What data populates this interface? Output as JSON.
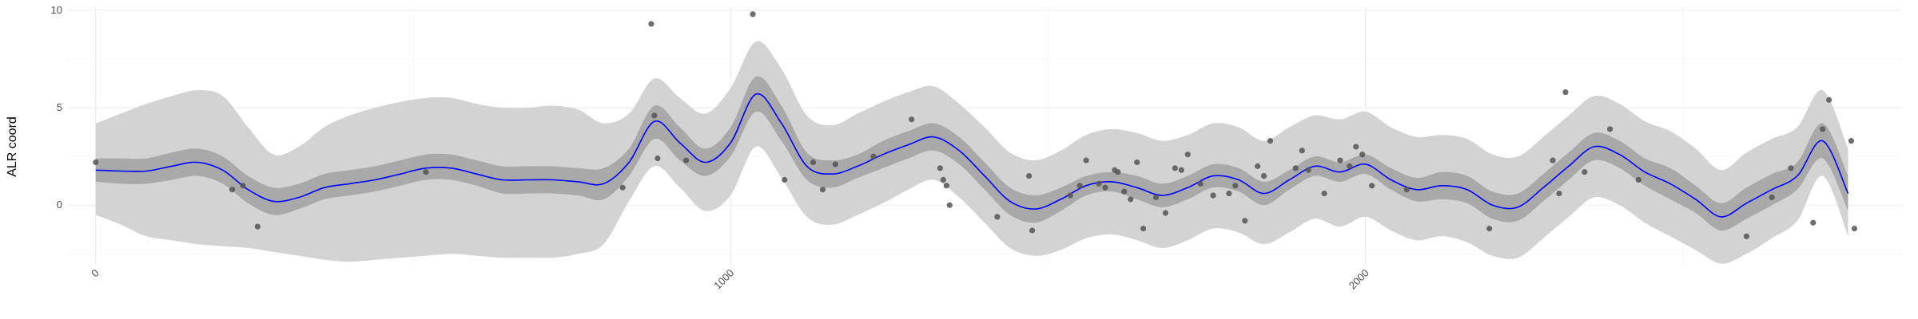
{
  "chart_data": {
    "type": "line",
    "title": "",
    "xlabel": "",
    "ylabel": "ALR coord",
    "xlim": [
      -45,
      2845
    ],
    "ylim": [
      -3.1,
      10.2
    ],
    "x_ticks": [
      0,
      1000,
      2000
    ],
    "x_tick_labels": [
      "0",
      "1000",
      "2000"
    ],
    "y_ticks": [
      0,
      5,
      10
    ],
    "y_tick_labels": [
      "0",
      "5",
      "10"
    ],
    "grid": true,
    "x_tick_label_rotation": "45deg",
    "colors": {
      "mean_line": "#0000ff",
      "inner_band": "#a9a9a9",
      "outer_band": "#d3d3d3",
      "points": "#555555",
      "grid_major": "#ebebeb",
      "grid_minor": "#f4f4f4"
    },
    "series": [
      {
        "role": "posterior-mean",
        "x": [
          0,
          40,
          80,
          120,
          160,
          200,
          240,
          280,
          320,
          360,
          400,
          440,
          480,
          520,
          560,
          600,
          640,
          680,
          720,
          760,
          800,
          840,
          880,
          920,
          960,
          1000,
          1040,
          1080,
          1120,
          1160,
          1200,
          1240,
          1280,
          1320,
          1360,
          1400,
          1440,
          1480,
          1520,
          1560,
          1600,
          1640,
          1680,
          1720,
          1760,
          1800,
          1840,
          1880,
          1920,
          1960,
          2000,
          2040,
          2080,
          2120,
          2160,
          2200,
          2240,
          2280,
          2320,
          2360,
          2400,
          2440,
          2480,
          2520,
          2560,
          2600,
          2640,
          2680,
          2720,
          2760
        ],
        "y": [
          1.8,
          1.75,
          1.75,
          2.0,
          2.2,
          1.8,
          0.8,
          0.2,
          0.4,
          0.9,
          1.1,
          1.3,
          1.6,
          1.9,
          1.9,
          1.6,
          1.3,
          1.3,
          1.3,
          1.2,
          1.1,
          2.2,
          4.3,
          3.2,
          2.2,
          3.2,
          5.7,
          4.2,
          2.0,
          1.6,
          2.0,
          2.6,
          3.1,
          3.5,
          2.8,
          1.5,
          0.2,
          -0.2,
          0.3,
          1.0,
          1.2,
          0.9,
          0.5,
          0.9,
          1.5,
          1.3,
          0.6,
          1.3,
          2.0,
          1.7,
          2.1,
          1.3,
          0.8,
          1.0,
          0.8,
          0.0,
          -0.1,
          0.9,
          2.0,
          3.0,
          2.6,
          1.7,
          1.1,
          0.3,
          -0.6,
          0.1,
          0.8,
          1.5,
          3.3,
          0.6
        ]
      }
    ],
    "inner_band": {
      "lower": [
        1.2,
        1.1,
        1.1,
        1.3,
        1.5,
        1.1,
        0.1,
        -0.5,
        -0.2,
        0.3,
        0.5,
        0.7,
        1.0,
        1.3,
        1.3,
        1.0,
        0.6,
        0.6,
        0.6,
        0.5,
        0.3,
        1.5,
        3.4,
        2.3,
        1.5,
        2.5,
        4.8,
        3.3,
        1.3,
        0.9,
        1.4,
        1.9,
        2.4,
        2.8,
        2.1,
        0.8,
        -0.5,
        -0.9,
        -0.3,
        0.5,
        0.7,
        0.3,
        -0.1,
        0.3,
        0.9,
        0.7,
        0.0,
        0.8,
        1.5,
        1.2,
        1.6,
        0.8,
        0.2,
        0.3,
        0.1,
        -0.7,
        -0.8,
        0.2,
        1.3,
        2.3,
        1.9,
        1.0,
        0.3,
        -0.4,
        -1.3,
        -0.7,
        0.0,
        0.8,
        2.4,
        -0.3
      ],
      "upper": [
        2.4,
        2.4,
        2.4,
        2.7,
        2.9,
        2.5,
        1.5,
        0.9,
        1.1,
        1.6,
        1.8,
        2.0,
        2.3,
        2.6,
        2.6,
        2.3,
        2.0,
        2.0,
        2.0,
        1.9,
        1.9,
        2.9,
        5.1,
        4.0,
        2.9,
        4.0,
        6.6,
        5.1,
        2.7,
        2.3,
        2.6,
        3.3,
        3.8,
        4.2,
        3.5,
        2.2,
        0.9,
        0.5,
        0.9,
        1.5,
        1.7,
        1.5,
        1.1,
        1.5,
        2.1,
        1.9,
        1.2,
        1.8,
        2.5,
        2.2,
        2.6,
        1.9,
        1.4,
        1.7,
        1.5,
        0.7,
        0.6,
        1.6,
        2.7,
        3.7,
        3.3,
        2.4,
        1.9,
        1.0,
        0.1,
        0.9,
        1.6,
        2.2,
        4.2,
        1.5
      ]
    },
    "outer_band": {
      "lower": [
        -0.5,
        -1.0,
        -1.6,
        -1.8,
        -2.0,
        -2.1,
        -2.2,
        -2.4,
        -2.6,
        -2.8,
        -2.9,
        -2.8,
        -2.7,
        -2.6,
        -2.5,
        -2.6,
        -2.7,
        -2.7,
        -2.7,
        -2.5,
        -2.0,
        0.2,
        2.0,
        0.9,
        -0.3,
        0.5,
        3.0,
        1.4,
        -0.6,
        -1.0,
        -0.5,
        0.1,
        0.8,
        1.3,
        0.4,
        -0.9,
        -2.2,
        -2.6,
        -2.3,
        -1.7,
        -1.5,
        -1.8,
        -2.2,
        -1.8,
        -1.2,
        -1.4,
        -2.0,
        -1.4,
        -0.7,
        -1.1,
        -0.6,
        -1.3,
        -1.8,
        -1.6,
        -1.9,
        -2.6,
        -2.7,
        -1.7,
        -0.6,
        0.4,
        0.0,
        -0.9,
        -1.6,
        -2.3,
        -3.0,
        -2.5,
        -1.7,
        -0.8,
        1.5,
        -1.6
      ],
      "upper": [
        4.2,
        4.7,
        5.2,
        5.6,
        5.9,
        5.6,
        4.0,
        2.6,
        3.0,
        4.0,
        4.6,
        5.0,
        5.3,
        5.5,
        5.5,
        5.2,
        5.0,
        5.0,
        5.1,
        4.9,
        4.2,
        4.7,
        6.5,
        5.5,
        4.7,
        6.0,
        8.4,
        7.0,
        4.6,
        4.1,
        4.7,
        5.3,
        5.8,
        6.1,
        5.2,
        4.0,
        2.7,
        2.3,
        2.8,
        3.6,
        3.9,
        3.7,
        3.3,
        3.6,
        4.2,
        4.0,
        3.3,
        4.0,
        4.6,
        4.4,
        4.8,
        4.0,
        3.5,
        3.6,
        3.4,
        2.6,
        2.5,
        3.5,
        4.6,
        5.6,
        5.2,
        4.3,
        3.8,
        2.9,
        1.8,
        2.7,
        3.4,
        4.0,
        5.9,
        2.9
      ]
    },
    "points": {
      "x": [
        0,
        215,
        232,
        255,
        520,
        830,
        875,
        880,
        885,
        930,
        1035,
        1085,
        1130,
        1145,
        1165,
        1225,
        1285,
        1330,
        1335,
        1340,
        1345,
        1420,
        1470,
        1475,
        1535,
        1550,
        1560,
        1580,
        1590,
        1605,
        1610,
        1620,
        1630,
        1640,
        1650,
        1670,
        1685,
        1700,
        1710,
        1720,
        1740,
        1760,
        1785,
        1795,
        1810,
        1830,
        1840,
        1850,
        1890,
        1900,
        1910,
        1935,
        1960,
        1975,
        1985,
        1995,
        2010,
        2065,
        2195,
        2295,
        2305,
        2315,
        2345,
        2385,
        2430,
        2600,
        2640,
        2670,
        2705,
        2720,
        2730,
        2765,
        2770
      ],
      "y": [
        2.2,
        0.8,
        1.0,
        -1.1,
        1.7,
        0.9,
        9.3,
        4.6,
        2.4,
        2.3,
        9.8,
        1.3,
        2.2,
        0.8,
        2.1,
        2.5,
        4.4,
        1.9,
        1.3,
        1.0,
        0.0,
        -0.6,
        1.5,
        -1.3,
        0.5,
        1.0,
        2.3,
        1.1,
        0.9,
        1.8,
        1.7,
        0.7,
        0.3,
        2.2,
        -1.2,
        0.4,
        -0.4,
        1.9,
        1.8,
        2.6,
        1.1,
        0.5,
        0.6,
        1.0,
        -0.8,
        2.0,
        1.5,
        3.3,
        1.9,
        2.8,
        1.8,
        0.6,
        2.3,
        2.0,
        3.0,
        2.6,
        1.0,
        0.8,
        -1.2,
        2.3,
        0.6,
        5.8,
        1.7,
        3.9,
        1.3,
        -1.6,
        0.4,
        1.9,
        -0.9,
        3.9,
        5.4,
        3.3,
        -1.2
      ]
    }
  }
}
